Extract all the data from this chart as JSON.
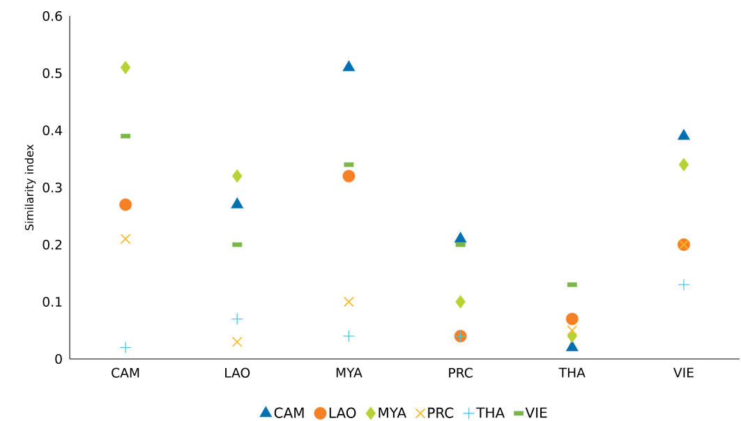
{
  "chart_data": {
    "type": "scatter",
    "ylabel": "Similarity index",
    "categories": [
      "CAM",
      "LAO",
      "MYA",
      "PRC",
      "THA",
      "VIE"
    ],
    "ylim": [
      0,
      0.6
    ],
    "yticks": [
      0,
      0.1,
      0.2,
      0.3,
      0.4,
      0.5,
      0.6
    ],
    "grid": false,
    "legend": "bottom",
    "series": [
      {
        "name": "CAM",
        "color": "#0070b0",
        "marker": "triangle",
        "values": [
          null,
          0.27,
          0.51,
          0.21,
          0.02,
          0.39
        ]
      },
      {
        "name": "LAO",
        "color": "#f58025",
        "marker": "circle",
        "values": [
          0.27,
          null,
          0.32,
          0.04,
          0.07,
          0.2
        ]
      },
      {
        "name": "MYA",
        "color": "#b5d334",
        "marker": "diamond",
        "values": [
          0.51,
          0.32,
          null,
          0.1,
          0.04,
          0.34
        ]
      },
      {
        "name": "PRC",
        "color": "#fbb827",
        "marker": "cross",
        "values": [
          0.21,
          0.03,
          0.1,
          null,
          0.05,
          0.2
        ]
      },
      {
        "name": "THA",
        "color": "#5bc3e8",
        "marker": "plus",
        "values": [
          0.02,
          0.07,
          0.04,
          0.04,
          null,
          0.13
        ]
      },
      {
        "name": "VIE",
        "color": "#7ab648",
        "marker": "square",
        "values": [
          0.39,
          0.2,
          0.34,
          0.2,
          0.13,
          null
        ]
      }
    ]
  }
}
